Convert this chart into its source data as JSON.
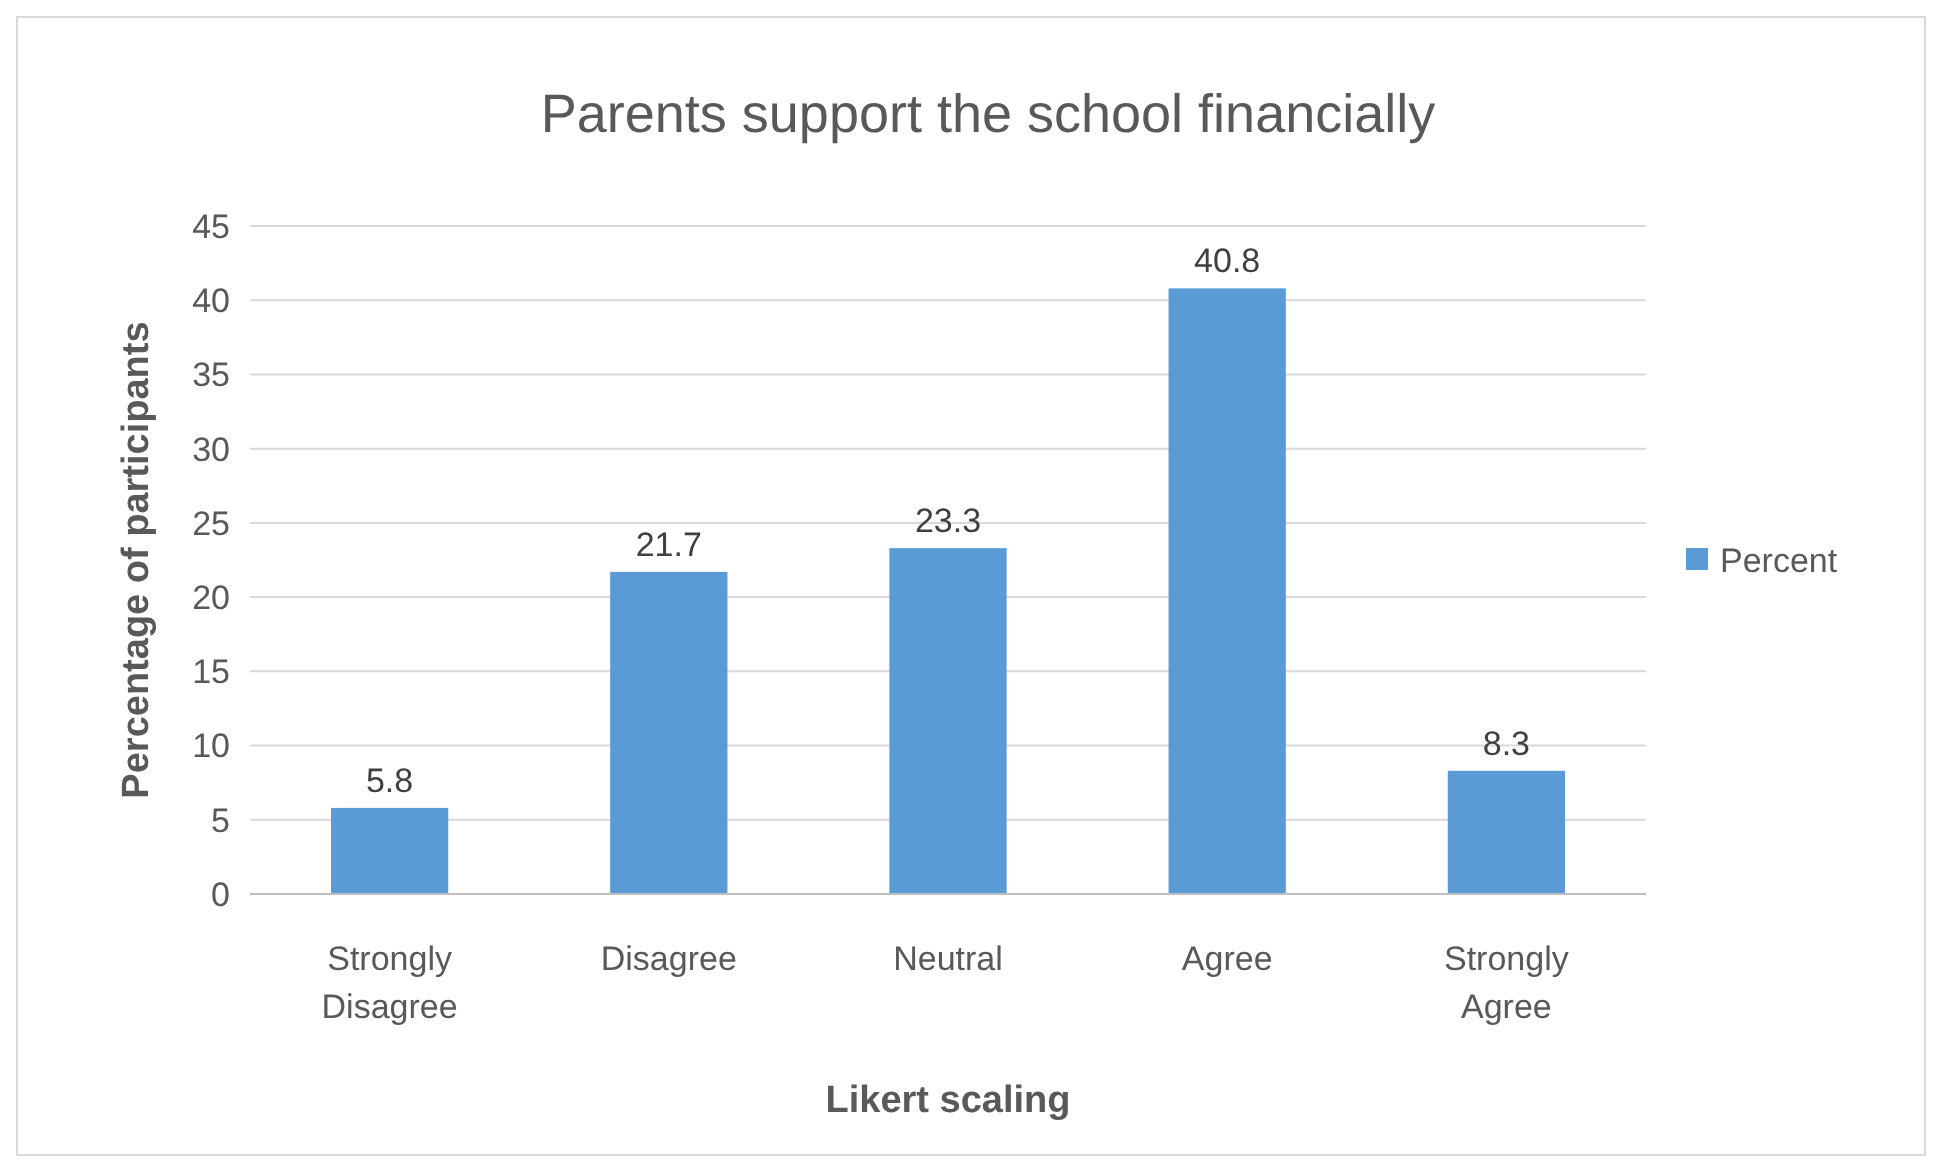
{
  "chart_data": {
    "type": "bar",
    "title": "Parents support the school financially",
    "xlabel": "Likert scaling",
    "ylabel": "Percentage of participants",
    "categories": [
      "Strongly Disagree",
      "Disagree",
      "Neutral",
      "Agree",
      "Strongly Agree"
    ],
    "series": [
      {
        "name": "Percent",
        "color": "#5b9bd5",
        "values": [
          5.8,
          21.7,
          23.3,
          40.8,
          8.3
        ]
      }
    ],
    "ylim": [
      0,
      45
    ],
    "yticks": [
      0,
      5,
      10,
      15,
      20,
      25,
      30,
      35,
      40,
      45
    ],
    "grid": "y",
    "legend": "right",
    "data_labels": true
  }
}
